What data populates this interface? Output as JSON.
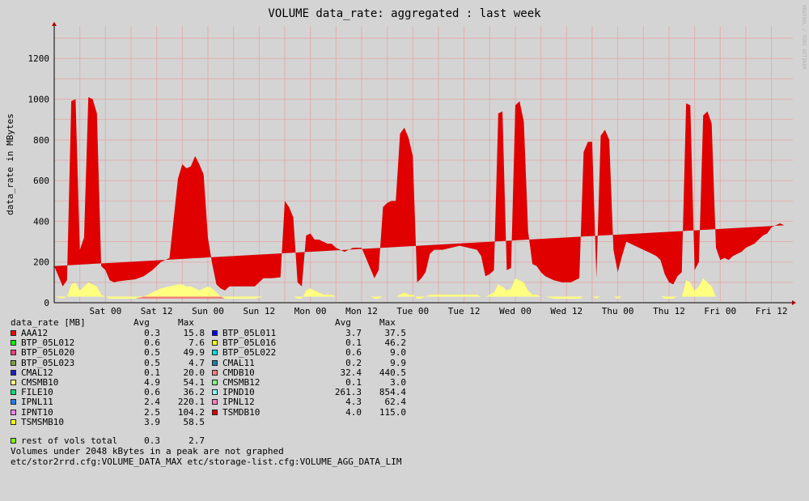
{
  "chart_data": {
    "type": "area",
    "title": "VOLUME data_rate: aggregated : last week",
    "ylabel": "data_rate in MBytes",
    "watermark": "RRDTOOL / TOBI OETIKER",
    "ylim": [
      0,
      1360
    ],
    "yticks": [
      0,
      200,
      400,
      600,
      800,
      1000,
      1200
    ],
    "xlim": [
      0,
      173
    ],
    "xticks": [
      {
        "label": "Sat 00",
        "h": 12
      },
      {
        "label": "Sat 12",
        "h": 24
      },
      {
        "label": "Sun 00",
        "h": 36
      },
      {
        "label": "Sun 12",
        "h": 48
      },
      {
        "label": "Mon 00",
        "h": 60
      },
      {
        "label": "Mon 12",
        "h": 72
      },
      {
        "label": "Tue 00",
        "h": 84
      },
      {
        "label": "Tue 12",
        "h": 96
      },
      {
        "label": "Wed 00",
        "h": 108
      },
      {
        "label": "Wed 12",
        "h": 120
      },
      {
        "label": "Thu 00",
        "h": 132
      },
      {
        "label": "Thu 12",
        "h": 144
      },
      {
        "label": "Fri 00",
        "h": 156
      },
      {
        "label": "Fri 12",
        "h": 168
      }
    ],
    "x_hours": [
      0,
      2,
      3,
      4,
      5,
      6,
      7,
      8,
      9,
      10,
      11,
      12,
      13,
      14,
      15,
      17,
      19,
      21,
      23,
      25,
      27,
      29,
      30,
      31,
      32,
      33,
      34,
      35,
      36,
      37,
      38,
      39,
      40,
      41,
      43,
      45,
      47,
      49,
      51,
      53,
      54,
      55,
      56,
      57,
      58,
      59,
      60,
      61,
      62,
      63,
      64,
      65,
      66,
      67,
      68,
      69,
      70,
      71,
      72,
      73,
      74,
      75,
      76,
      77,
      78,
      79,
      80,
      81,
      82,
      83,
      84,
      85,
      86,
      87,
      88,
      89,
      91,
      93,
      95,
      97,
      99,
      100,
      101,
      102,
      103,
      104,
      105,
      106,
      107,
      108,
      109,
      110,
      111,
      112,
      113,
      114,
      115,
      117,
      119,
      121,
      123,
      124,
      125,
      126,
      127,
      128,
      129,
      130,
      131,
      132,
      133,
      134,
      135,
      136,
      137,
      138,
      139,
      140,
      141,
      142,
      143,
      144,
      145,
      146,
      147,
      148,
      149,
      150,
      151,
      152,
      153,
      154,
      155,
      156,
      157,
      158,
      159,
      160,
      161,
      162,
      163,
      164,
      165,
      166,
      167,
      168,
      169,
      170,
      171,
      172
    ],
    "series": [
      {
        "name": "IPND10",
        "color": "#80ffff",
        "values": [
          150,
          60,
          80,
          870,
          880,
          200,
          240,
          860,
          870,
          830,
          140,
          130,
          90,
          80,
          85,
          90,
          95,
          100,
          110,
          130,
          140,
          500,
          560,
          540,
          560,
          600,
          560,
          520,
          240,
          120,
          40,
          40,
          40,
          60,
          60,
          60,
          60,
          90,
          90,
          95,
          460,
          430,
          380,
          80,
          60,
          230,
          240,
          250,
          260,
          260,
          250,
          250,
          240,
          230,
          220,
          230,
          240,
          240,
          240,
          190,
          140,
          100,
          140,
          440,
          460,
          470,
          470,
          760,
          770,
          740,
          660,
          80,
          100,
          120,
          200,
          220,
          220,
          230,
          240,
          230,
          220,
          200,
          100,
          100,
          110,
          830,
          810,
          100,
          100,
          820,
          820,
          770,
          290,
          150,
          140,
          120,
          100,
          90,
          80,
          80,
          100,
          710,
          740,
          720,
          100,
          780,
          790,
          760,
          230,
          130,
          200,
          270,
          260,
          250,
          240,
          230,
          220,
          210,
          200,
          180,
          120,
          80,
          70,
          100,
          120,
          850,
          830,
          100,
          120,
          780,
          800,
          780,
          240,
          180,
          190,
          180,
          200,
          210,
          220,
          240,
          250,
          260,
          280,
          300,
          310,
          340,
          350,
          360,
          350
        ]
      },
      {
        "name": "CMDB10",
        "color": "#f08080",
        "values": [
          30,
          20,
          30,
          90,
          100,
          60,
          80,
          100,
          90,
          80,
          40,
          30,
          20,
          20,
          20,
          20,
          20,
          20,
          20,
          20,
          20,
          20,
          20,
          20,
          20,
          20,
          20,
          20,
          20,
          20,
          20,
          20,
          20,
          20,
          20,
          20,
          20,
          30,
          30,
          30,
          30,
          30,
          30,
          20,
          20,
          60,
          70,
          60,
          50,
          40,
          40,
          40,
          30,
          30,
          30,
          30,
          30,
          30,
          30,
          30,
          30,
          20,
          20,
          30,
          30,
          30,
          30,
          40,
          50,
          40,
          40,
          20,
          20,
          30,
          40,
          40,
          40,
          40,
          40,
          40,
          40,
          30,
          30,
          40,
          50,
          90,
          80,
          60,
          70,
          120,
          110,
          100,
          60,
          40,
          40,
          30,
          30,
          20,
          20,
          20,
          20,
          30,
          30,
          30,
          20,
          30,
          30,
          30,
          30,
          20,
          30,
          30,
          30,
          30,
          30,
          30,
          30,
          30,
          30,
          30,
          20,
          20,
          20,
          30,
          30,
          110,
          100,
          60,
          80,
          120,
          100,
          80,
          30,
          30,
          30,
          30,
          30,
          30,
          30,
          30,
          30,
          30,
          30,
          30,
          30,
          30,
          30,
          30,
          30
        ]
      },
      {
        "name": "CMSMB10",
        "color": "#ffff80",
        "values": [
          0,
          0,
          0,
          0,
          0,
          0,
          0,
          0,
          0,
          0,
          0,
          0,
          0,
          0,
          0,
          0,
          0,
          10,
          30,
          50,
          60,
          70,
          70,
          60,
          60,
          50,
          40,
          50,
          60,
          50,
          30,
          10,
          0,
          0,
          0,
          0,
          0,
          0,
          0,
          0,
          0,
          0,
          0,
          0,
          0,
          0,
          0,
          0,
          0,
          0,
          0,
          0,
          0,
          0,
          0,
          0,
          0,
          0,
          0,
          0,
          0,
          0,
          0,
          0,
          0,
          0,
          0,
          0,
          0,
          0,
          0,
          0,
          0,
          0,
          0,
          0,
          0,
          0,
          0,
          0,
          0,
          0,
          0,
          0,
          0,
          0,
          0,
          0,
          0,
          0,
          0,
          0,
          0,
          0,
          0,
          0,
          0,
          0,
          0,
          0,
          0,
          0,
          0,
          0,
          0,
          0,
          0,
          0,
          0,
          0,
          0,
          0,
          0,
          0,
          0,
          0,
          0,
          0,
          0,
          0,
          0,
          0,
          0,
          0,
          0,
          0,
          0,
          0,
          0,
          0,
          0,
          0,
          0,
          0,
          0,
          0,
          0,
          0,
          0,
          0,
          0,
          0,
          0,
          0,
          0,
          0,
          0,
          0,
          0
        ]
      },
      {
        "name": "TSMDB10",
        "color": "#e00000",
        "values": [
          0,
          0,
          0,
          30,
          20,
          0,
          0,
          50,
          40,
          20,
          0,
          0,
          0,
          0,
          0,
          0,
          0,
          0,
          0,
          0,
          0,
          20,
          30,
          40,
          30,
          50,
          60,
          40,
          0,
          0,
          0,
          0,
          0,
          0,
          0,
          0,
          0,
          0,
          0,
          0,
          10,
          10,
          10,
          0,
          0,
          40,
          30,
          0,
          0,
          0,
          0,
          0,
          0,
          0,
          0,
          0,
          0,
          0,
          0,
          0,
          0,
          0,
          0,
          0,
          0,
          0,
          0,
          30,
          40,
          30,
          20,
          0,
          0,
          0,
          0,
          0,
          0,
          0,
          0,
          0,
          0,
          0,
          0,
          0,
          0,
          10,
          50,
          0,
          0,
          30,
          60,
          20,
          0,
          0,
          0,
          0,
          0,
          0,
          0,
          0,
          0,
          0,
          20,
          40,
          0,
          10,
          30,
          10,
          0,
          0,
          0,
          0,
          0,
          0,
          0,
          0,
          0,
          0,
          0,
          0,
          0,
          0,
          0,
          0,
          0,
          20,
          40,
          0,
          0,
          20,
          40,
          20,
          0,
          0,
          0,
          0,
          0,
          0,
          0,
          0,
          0,
          0,
          0,
          0,
          0,
          0,
          0,
          0,
          0
        ]
      }
    ]
  },
  "legend": {
    "header": "data_rate [MB]",
    "col_avg": "Avg",
    "col_max": "Max",
    "left": [
      {
        "name": "AAA12",
        "avg": "0.3",
        "max": "15.8",
        "color": "#ff0000"
      },
      {
        "name": "BTP_05L012",
        "avg": "0.6",
        "max": "7.6",
        "color": "#00ff00"
      },
      {
        "name": "BTP_05L020",
        "avg": "0.5",
        "max": "49.9",
        "color": "#ff4080"
      },
      {
        "name": "BTP_05L023",
        "avg": "0.5",
        "max": "4.7",
        "color": "#80a040"
      },
      {
        "name": "CMAL12",
        "avg": "0.1",
        "max": "20.0",
        "color": "#2020c0"
      },
      {
        "name": "CMSMB10",
        "avg": "4.9",
        "max": "54.1",
        "color": "#ffff80"
      },
      {
        "name": "FILE10",
        "avg": "0.6",
        "max": "36.2",
        "color": "#00e080"
      },
      {
        "name": "IPNL11",
        "avg": "2.4",
        "max": "220.1",
        "color": "#2080ff"
      },
      {
        "name": "IPNT10",
        "avg": "2.5",
        "max": "104.2",
        "color": "#ff80ff"
      },
      {
        "name": "TSMSMB10",
        "avg": "3.9",
        "max": "58.5",
        "color": "#ffff00"
      }
    ],
    "right": [
      {
        "name": "BTP_05L011",
        "avg": "3.7",
        "max": "37.5",
        "color": "#0000ff"
      },
      {
        "name": "BTP_05L016",
        "avg": "0.1",
        "max": "46.2",
        "color": "#ffff00"
      },
      {
        "name": "BTP_05L022",
        "avg": "0.6",
        "max": "9.0",
        "color": "#00e0e0"
      },
      {
        "name": "CMAL11",
        "avg": "0.2",
        "max": "9.9",
        "color": "#2080a0"
      },
      {
        "name": "CMDB10",
        "avg": "32.4",
        "max": "440.5",
        "color": "#f08080"
      },
      {
        "name": "CMSMB12",
        "avg": "0.1",
        "max": "3.0",
        "color": "#80ff80"
      },
      {
        "name": "IPND10",
        "avg": "261.3",
        "max": "854.4",
        "color": "#80ffff"
      },
      {
        "name": "IPNL12",
        "avg": "4.3",
        "max": "62.4",
        "color": "#ff80c0"
      },
      {
        "name": "TSMDB10",
        "avg": "4.0",
        "max": "115.0",
        "color": "#e00000"
      }
    ],
    "rest": {
      "name": "rest of vols total",
      "avg": "0.3",
      "max": "2.7",
      "color": "#80ff00"
    },
    "note1": "Volumes under 2048 kBytes in a peak are not graphed",
    "note2": "etc/stor2rrd.cfg:VOLUME_DATA_MAX etc/storage-list.cfg:VOLUME_AGG_DATA_LIM"
  }
}
